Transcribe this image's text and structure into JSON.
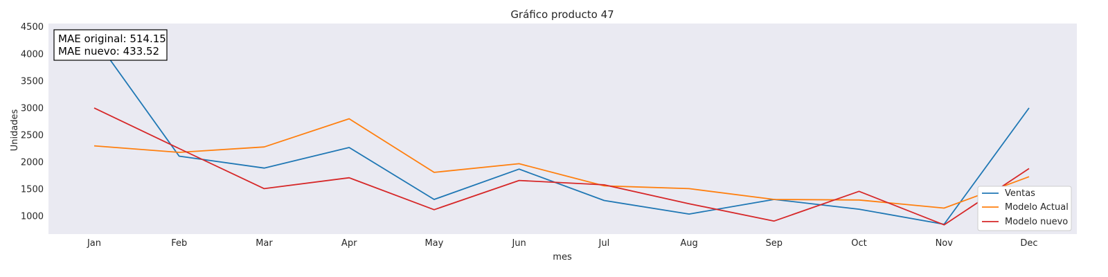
{
  "chart_data": {
    "type": "line",
    "title": "Gráfico producto 47",
    "xlabel": "mes",
    "ylabel": "Unidades",
    "categories": [
      "Jan",
      "Feb",
      "Mar",
      "Apr",
      "May",
      "Jun",
      "Jul",
      "Aug",
      "Sep",
      "Oct",
      "Nov",
      "Dec"
    ],
    "yticks": [
      1000,
      1500,
      2000,
      2500,
      3000,
      3500,
      4000,
      4500
    ],
    "ylim": [
      670,
      4560
    ],
    "grid": false,
    "legend_position": "lower-right",
    "series": [
      {
        "name": "Ventas",
        "color": "#1f77b4",
        "values": [
          4300,
          2110,
          1890,
          2270,
          1310,
          1870,
          1290,
          1040,
          1310,
          1130,
          850,
          3000
        ]
      },
      {
        "name": "Modelo Actual",
        "color": "#ff7f0e",
        "values": [
          2300,
          2180,
          2280,
          2800,
          1810,
          1970,
          1560,
          1510,
          1310,
          1300,
          1150,
          1730
        ]
      },
      {
        "name": "Modelo nuevo",
        "color": "#d62728",
        "values": [
          3000,
          2250,
          1510,
          1710,
          1120,
          1660,
          1580,
          1230,
          910,
          1460,
          840,
          1880
        ]
      }
    ],
    "annotation": {
      "lines": [
        "MAE original: 514.15",
        "MAE nuevo: 433.52"
      ]
    }
  }
}
